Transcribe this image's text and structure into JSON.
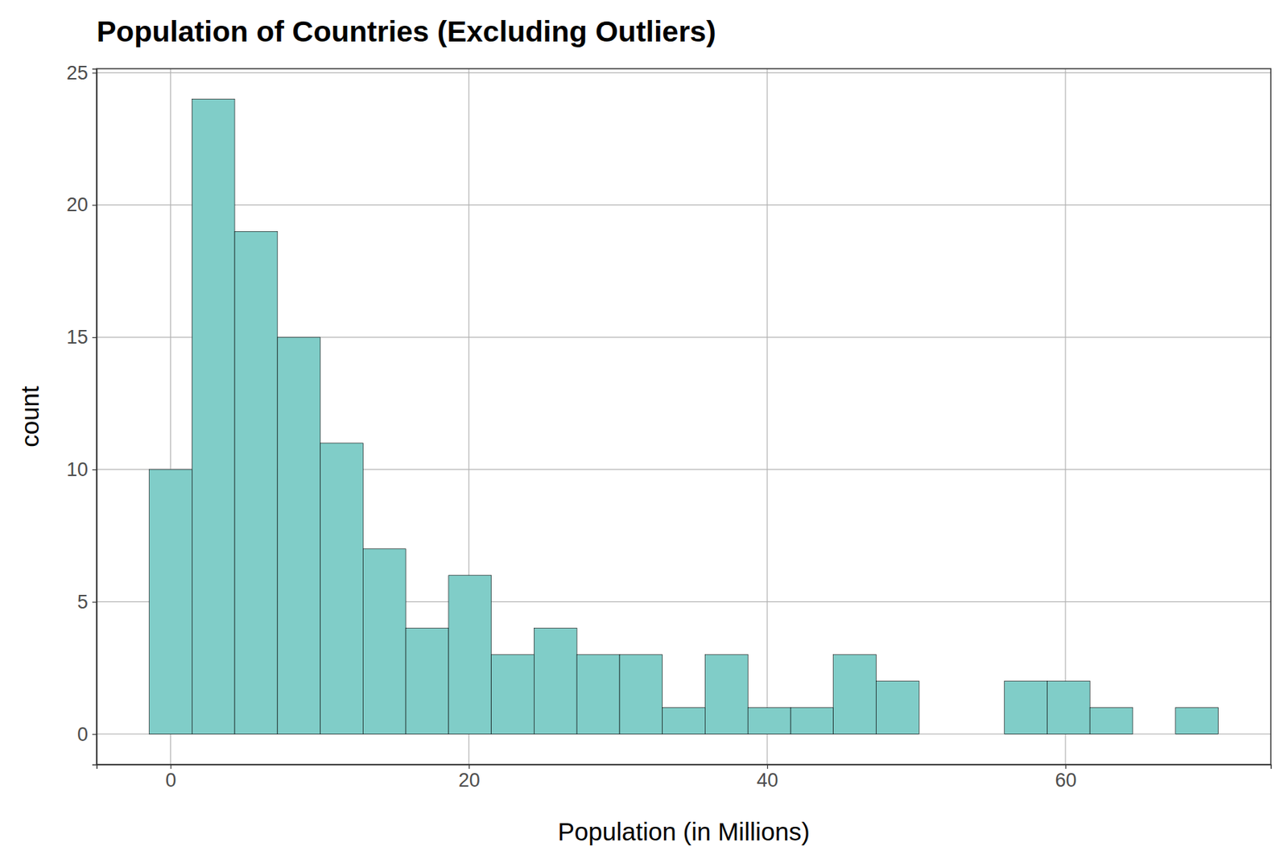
{
  "chart_data": {
    "type": "histogram",
    "title": "Population of Countries (Excluding Outliers)",
    "x_label": "Population (in Millions)",
    "y_label": "count",
    "bins": [
      -1.43,
      1.44,
      4.3,
      7.17,
      10.04,
      12.91,
      15.77,
      18.64,
      21.51,
      24.37,
      27.24,
      30.11,
      32.97,
      35.84,
      38.71,
      41.58,
      44.44,
      47.31,
      50.18,
      53.04,
      55.91,
      58.78,
      61.64,
      64.51,
      67.38,
      70.25
    ],
    "values": [
      10,
      24,
      19,
      15,
      11,
      7,
      4,
      6,
      3,
      4,
      3,
      3,
      1,
      3,
      1,
      1,
      3,
      2,
      0,
      0,
      2,
      2,
      1,
      0,
      1
    ],
    "color": "#80cdc8",
    "xlim": [
      -4.96,
      73.77
    ],
    "xticks": [
      0,
      20,
      40,
      60
    ],
    "ylim": [
      -1.15,
      25.15
    ],
    "yticks": [
      0,
      5,
      10,
      15,
      20,
      25
    ],
    "grid": true
  }
}
